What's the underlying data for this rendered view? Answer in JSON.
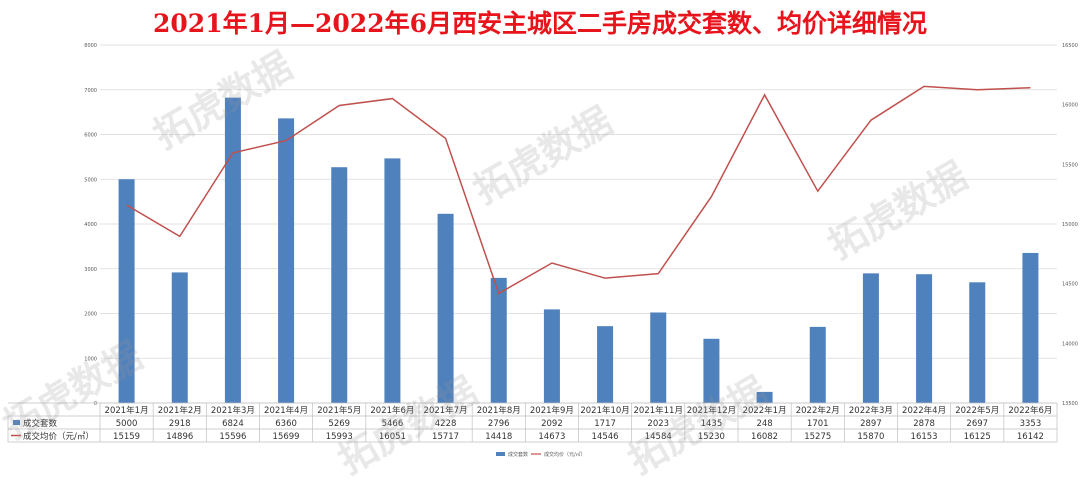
{
  "title": "2021年1月—2022年6月西安主城区二手房成交套数、均价详细情况",
  "watermark": "拓虎数据",
  "chart_data": {
    "type": "bar+line",
    "categories": [
      "2021年1月",
      "2021年2月",
      "2021年3月",
      "2021年4月",
      "2021年5月",
      "2021年6月",
      "2021年7月",
      "2021年8月",
      "2021年9月",
      "2021年10月",
      "2021年11月",
      "2021年12月",
      "2022年1月",
      "2022年2月",
      "2022年3月",
      "2022年4月",
      "2022年5月",
      "2022年6月"
    ],
    "series": [
      {
        "name": "成交套数",
        "type": "bar",
        "axis": "left",
        "color": "#4f81bd",
        "values": [
          5000,
          2918,
          6824,
          6360,
          5269,
          5466,
          4228,
          2796,
          2092,
          1717,
          2023,
          1435,
          248,
          1701,
          2897,
          2878,
          2697,
          3353
        ]
      },
      {
        "name": "成交均价（元/㎡）",
        "type": "line",
        "axis": "right",
        "color": "#c0504d",
        "values": [
          15159,
          14896,
          15596,
          15699,
          15993,
          16051,
          15717,
          14418,
          14673,
          14546,
          14584,
          15230,
          16082,
          15275,
          15870,
          16153,
          16125,
          16142
        ]
      }
    ],
    "left_axis": {
      "min": 0,
      "max": 8000,
      "ticks": [
        "0",
        "1000",
        "2000",
        "3000",
        "4000",
        "5000",
        "6000",
        "7000",
        "8000"
      ]
    },
    "right_axis": {
      "min": 13500,
      "max": 16500,
      "ticks": [
        "13500",
        "14000",
        "14500",
        "15000",
        "15500",
        "16000",
        "16500"
      ]
    },
    "grid": true,
    "legend": "bottom",
    "data_table": true
  }
}
